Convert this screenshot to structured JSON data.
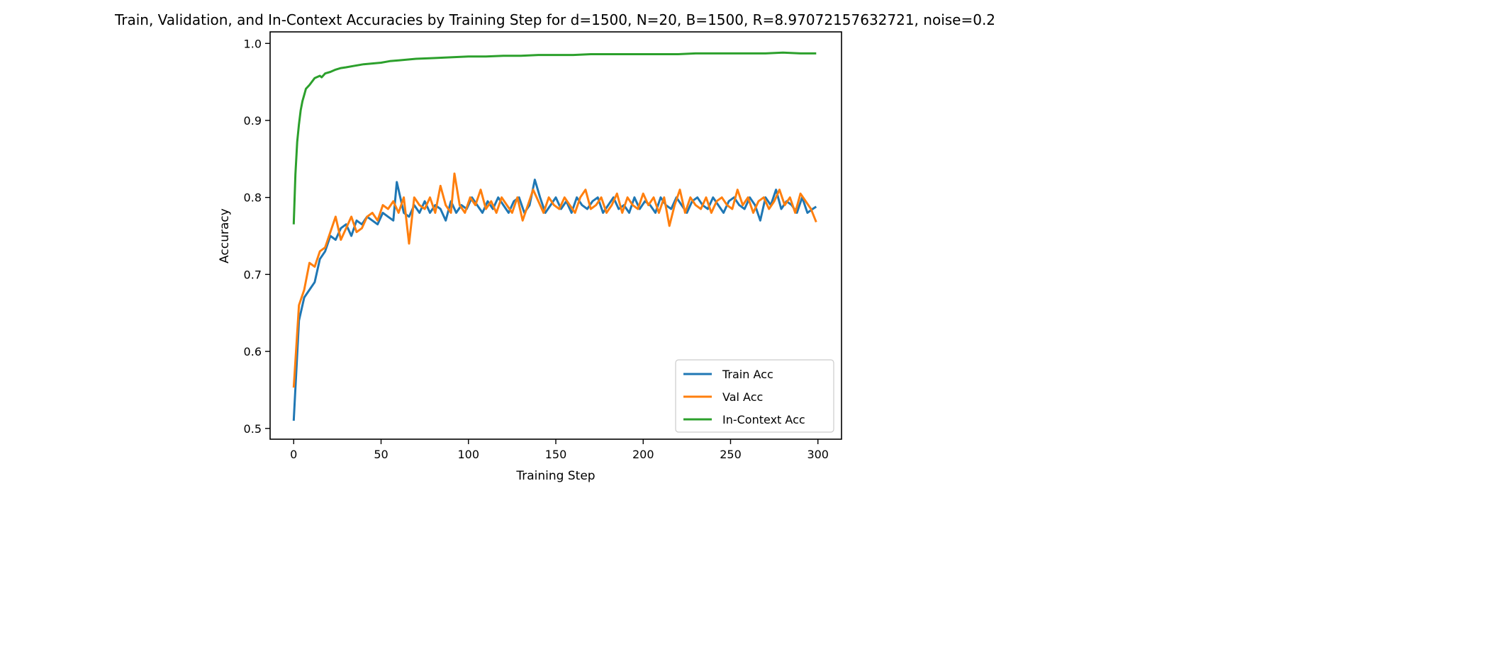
{
  "chart_data": {
    "type": "line",
    "title": "Train, Validation, and In-Context Accuracies by Training Step for d=1500, N=20, B=1500, R=8.97072157632721, noise=0.2",
    "xlabel": "Training Step",
    "ylabel": "Accuracy",
    "xlim": [
      -13.5,
      313.5
    ],
    "ylim": [
      0.486,
      1.015
    ],
    "xticks": [
      0,
      50,
      100,
      150,
      200,
      250,
      300
    ],
    "yticks": [
      0.5,
      0.6,
      0.7,
      0.8,
      0.9,
      1.0
    ],
    "ytick_labels": [
      "0.5",
      "0.6",
      "0.7",
      "0.8",
      "0.9",
      "1.0"
    ],
    "grid": false,
    "legend_position": "lower-right",
    "series": [
      {
        "name": "Train Acc",
        "color": "#1f77b4",
        "x": [
          0,
          3,
          6,
          9,
          12,
          15,
          18,
          21,
          24,
          27,
          30,
          33,
          36,
          39,
          42,
          45,
          48,
          51,
          54,
          57,
          59,
          63,
          66,
          69,
          72,
          75,
          78,
          81,
          84,
          87,
          90,
          93,
          96,
          99,
          102,
          105,
          108,
          111,
          114,
          117,
          120,
          123,
          126,
          129,
          132,
          135,
          138,
          141,
          144,
          147,
          150,
          153,
          156,
          159,
          162,
          165,
          168,
          171,
          174,
          177,
          180,
          183,
          186,
          189,
          192,
          195,
          198,
          201,
          204,
          207,
          210,
          213,
          216,
          219,
          222,
          225,
          228,
          231,
          234,
          237,
          240,
          243,
          246,
          249,
          252,
          255,
          258,
          261,
          264,
          267,
          270,
          273,
          276,
          279,
          282,
          285,
          288,
          291,
          294,
          297,
          299
        ],
        "y": [
          0.51,
          0.64,
          0.67,
          0.68,
          0.69,
          0.72,
          0.73,
          0.75,
          0.745,
          0.76,
          0.765,
          0.75,
          0.77,
          0.765,
          0.775,
          0.77,
          0.765,
          0.78,
          0.775,
          0.77,
          0.82,
          0.78,
          0.775,
          0.79,
          0.78,
          0.795,
          0.78,
          0.79,
          0.785,
          0.77,
          0.795,
          0.78,
          0.79,
          0.785,
          0.8,
          0.79,
          0.78,
          0.795,
          0.785,
          0.8,
          0.79,
          0.78,
          0.795,
          0.8,
          0.78,
          0.79,
          0.823,
          0.8,
          0.78,
          0.79,
          0.8,
          0.785,
          0.795,
          0.78,
          0.8,
          0.79,
          0.785,
          0.795,
          0.8,
          0.78,
          0.79,
          0.8,
          0.785,
          0.79,
          0.78,
          0.8,
          0.785,
          0.795,
          0.79,
          0.78,
          0.8,
          0.79,
          0.785,
          0.8,
          0.79,
          0.78,
          0.795,
          0.8,
          0.79,
          0.785,
          0.8,
          0.79,
          0.78,
          0.795,
          0.8,
          0.79,
          0.785,
          0.8,
          0.79,
          0.77,
          0.8,
          0.79,
          0.81,
          0.785,
          0.795,
          0.79,
          0.78,
          0.8,
          0.78,
          0.785,
          0.788
        ]
      },
      {
        "name": "Val Acc",
        "color": "#ff7f0e",
        "x": [
          0,
          3,
          6,
          9,
          12,
          15,
          18,
          21,
          24,
          27,
          30,
          33,
          36,
          39,
          42,
          45,
          48,
          51,
          54,
          57,
          60,
          63,
          66,
          69,
          72,
          75,
          78,
          81,
          84,
          87,
          90,
          92,
          95,
          98,
          101,
          104,
          107,
          110,
          113,
          116,
          119,
          122,
          125,
          128,
          131,
          134,
          137,
          140,
          143,
          146,
          149,
          152,
          155,
          158,
          161,
          164,
          167,
          170,
          173,
          176,
          179,
          182,
          185,
          188,
          191,
          194,
          197,
          200,
          203,
          206,
          209,
          212,
          215,
          218,
          221,
          224,
          227,
          230,
          233,
          236,
          239,
          242,
          245,
          248,
          251,
          254,
          257,
          260,
          263,
          266,
          269,
          272,
          275,
          278,
          281,
          284,
          287,
          290,
          293,
          296,
          299
        ],
        "y": [
          0.553,
          0.66,
          0.68,
          0.715,
          0.71,
          0.73,
          0.735,
          0.755,
          0.775,
          0.745,
          0.76,
          0.775,
          0.755,
          0.76,
          0.775,
          0.78,
          0.77,
          0.79,
          0.785,
          0.795,
          0.78,
          0.8,
          0.74,
          0.8,
          0.79,
          0.785,
          0.8,
          0.78,
          0.815,
          0.79,
          0.78,
          0.831,
          0.79,
          0.78,
          0.8,
          0.79,
          0.81,
          0.785,
          0.795,
          0.78,
          0.8,
          0.79,
          0.78,
          0.8,
          0.77,
          0.79,
          0.81,
          0.795,
          0.78,
          0.8,
          0.79,
          0.785,
          0.8,
          0.79,
          0.78,
          0.8,
          0.81,
          0.785,
          0.79,
          0.8,
          0.78,
          0.79,
          0.805,
          0.78,
          0.8,
          0.79,
          0.785,
          0.805,
          0.79,
          0.8,
          0.78,
          0.8,
          0.763,
          0.79,
          0.81,
          0.78,
          0.8,
          0.79,
          0.785,
          0.8,
          0.78,
          0.795,
          0.8,
          0.79,
          0.785,
          0.81,
          0.79,
          0.8,
          0.78,
          0.795,
          0.8,
          0.785,
          0.795,
          0.81,
          0.79,
          0.8,
          0.78,
          0.805,
          0.795,
          0.785,
          0.768
        ]
      },
      {
        "name": "In-Context Acc",
        "color": "#2ca02c",
        "x": [
          0,
          1,
          2,
          3,
          4,
          5,
          6,
          7,
          9,
          12,
          15,
          16,
          18,
          21,
          24,
          27,
          30,
          35,
          40,
          45,
          50,
          55,
          60,
          70,
          80,
          90,
          100,
          110,
          120,
          130,
          140,
          150,
          160,
          170,
          180,
          190,
          200,
          210,
          220,
          230,
          240,
          250,
          260,
          270,
          280,
          290,
          299
        ],
        "y": [
          0.765,
          0.83,
          0.872,
          0.895,
          0.913,
          0.925,
          0.933,
          0.941,
          0.946,
          0.955,
          0.958,
          0.956,
          0.961,
          0.963,
          0.966,
          0.968,
          0.969,
          0.971,
          0.973,
          0.974,
          0.975,
          0.977,
          0.978,
          0.98,
          0.981,
          0.982,
          0.983,
          0.983,
          0.984,
          0.984,
          0.985,
          0.985,
          0.985,
          0.986,
          0.986,
          0.986,
          0.986,
          0.986,
          0.986,
          0.987,
          0.987,
          0.987,
          0.987,
          0.987,
          0.988,
          0.987,
          0.987
        ]
      }
    ]
  }
}
